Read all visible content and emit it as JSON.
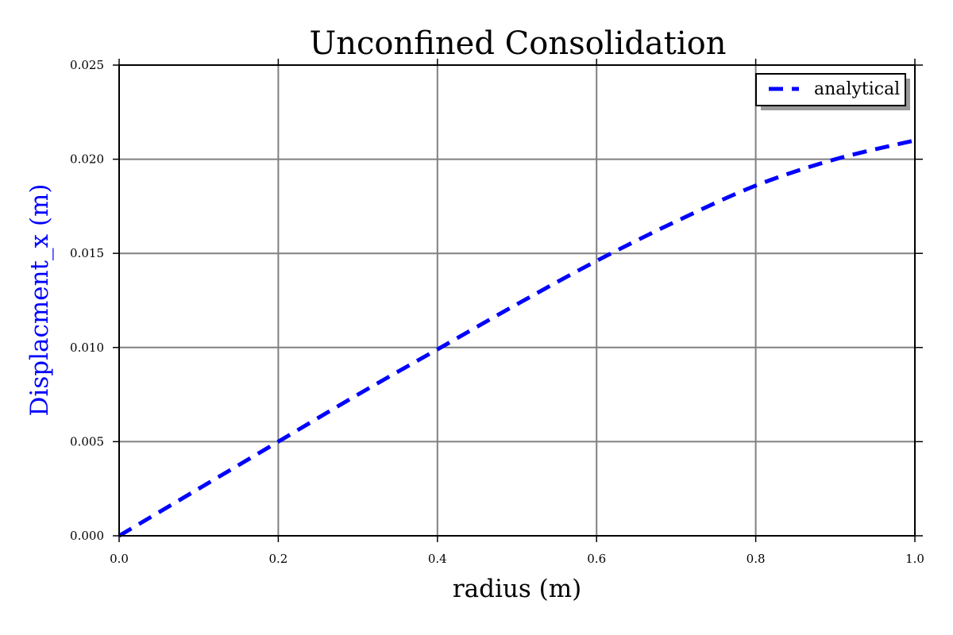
{
  "chart_data": {
    "type": "line",
    "title": "Unconfined Consolidation",
    "xlabel": "radius (m)",
    "ylabel": "Displacment_x (m)",
    "xlim": [
      0.0,
      1.0
    ],
    "ylim": [
      0.0,
      0.025
    ],
    "xticks": [
      "0.0",
      "0.2",
      "0.4",
      "0.6",
      "0.8",
      "1.0"
    ],
    "yticks": [
      "0.000",
      "0.005",
      "0.010",
      "0.015",
      "0.020",
      "0.025"
    ],
    "grid": true,
    "legend": "top-right",
    "colors": {
      "series": "#0000ff",
      "ylabel": "#0000ff",
      "grid": "#808080",
      "frame": "#000000"
    },
    "series": [
      {
        "name": "analytical",
        "style": "dashed",
        "x": [
          0.0,
          0.1,
          0.2,
          0.3,
          0.4,
          0.5,
          0.6,
          0.7,
          0.8,
          0.9,
          1.0
        ],
        "y": [
          0.0,
          0.0025,
          0.005,
          0.0075,
          0.0099,
          0.0123,
          0.0146,
          0.0167,
          0.0186,
          0.02,
          0.021
        ]
      }
    ]
  }
}
